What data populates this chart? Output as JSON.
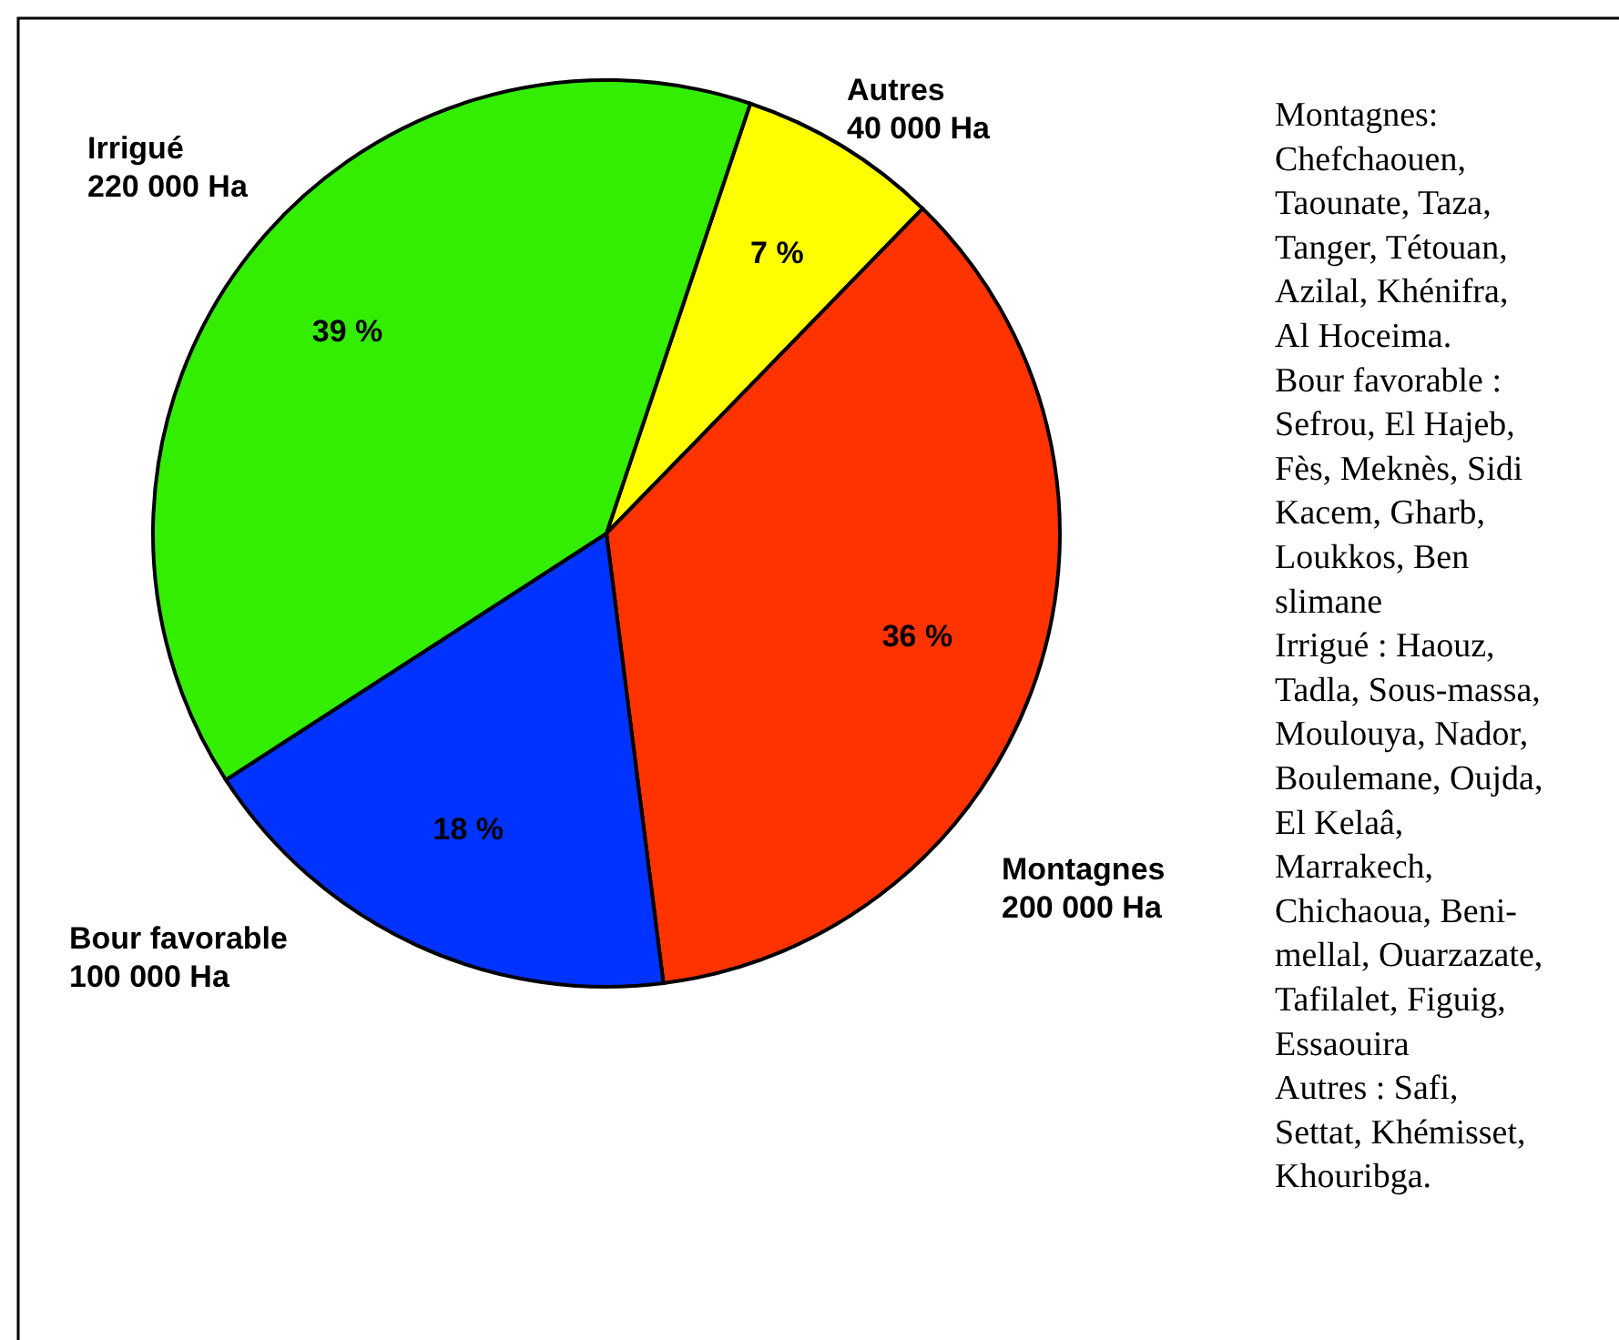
{
  "chart_data": {
    "type": "pie",
    "categories": [
      "Autres",
      "Montagnes",
      "Bour favorable",
      "Irrigué"
    ],
    "values": [
      40000,
      200000,
      100000,
      220000
    ],
    "colors": [
      "#ffff00",
      "#ff3300",
      "#0033ff",
      "#33ee00"
    ],
    "value_labels": [
      "40 000 Ha",
      "200 000 Ha",
      "100 000 Ha",
      "220 000 Ha"
    ],
    "annotations": [
      {
        "text": "7 %",
        "x": "Autres"
      },
      {
        "text": "36 %",
        "x": "Montagnes"
      },
      {
        "text": "18 %",
        "x": "Bour favorable"
      },
      {
        "text": "39 %",
        "x": "Irrigué"
      },
      "Montagnes: Chefchaouen, Taounate, Taza, Tanger, Tétouan, Azilal, Khénifra, Al Hoceima.",
      "Bour favorable : Sefrou, El Hajeb, Fès, Meknès, Sidi Kacem, Gharb, Loukkos, Ben slimane",
      "Irrigué : Haouz, Tadla, Sous-massa, Moulouya, Nador, Boulemane, Oujda, El Kelaâ, Marrakech, Chichaoua, Beni-mellal, Ouarzazate, Tafilalet, Figuig, Essaouira",
      "Autres : Safi, Settat, Khémisset, Khouribga."
    ]
  }
}
